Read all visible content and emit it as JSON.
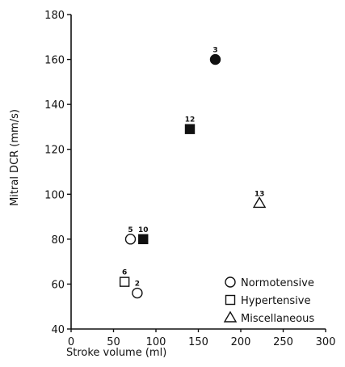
{
  "chart_data": {
    "type": "scatter",
    "title": "",
    "xlabel": "Stroke volume (ml)",
    "ylabel": "Mitral DCR (mm/s)",
    "xlim": [
      0,
      300
    ],
    "ylim": [
      40,
      180
    ],
    "x_ticks": [
      0,
      50,
      100,
      150,
      200,
      250,
      300
    ],
    "y_ticks": [
      40,
      60,
      80,
      100,
      120,
      140,
      160,
      180
    ],
    "x_tick_labels": [
      "0",
      "50",
      "100",
      "150",
      "200",
      "250",
      "300"
    ],
    "y_tick_labels": [
      "40",
      "60",
      "80",
      "100",
      "120",
      "140",
      "160",
      "180"
    ],
    "grid": false,
    "legend_position": "bottom-right",
    "legend": [
      {
        "name": "Normotensive",
        "marker": "circle"
      },
      {
        "name": "Hypertensive",
        "marker": "square"
      },
      {
        "name": "Miscellaneous",
        "marker": "triangle"
      }
    ],
    "points": [
      {
        "label": "3",
        "x": 170,
        "y": 160,
        "marker": "circle",
        "filled": true
      },
      {
        "label": "12",
        "x": 140,
        "y": 129,
        "marker": "square",
        "filled": true
      },
      {
        "label": "13",
        "x": 222,
        "y": 96,
        "marker": "triangle",
        "filled": false
      },
      {
        "label": "5",
        "x": 70,
        "y": 80,
        "marker": "circle",
        "filled": false
      },
      {
        "label": "10",
        "x": 85,
        "y": 80,
        "marker": "square",
        "filled": true
      },
      {
        "label": "6",
        "x": 63,
        "y": 61,
        "marker": "square",
        "filled": false
      },
      {
        "label": "2",
        "x": 78,
        "y": 56,
        "marker": "circle",
        "filled": false
      }
    ]
  }
}
